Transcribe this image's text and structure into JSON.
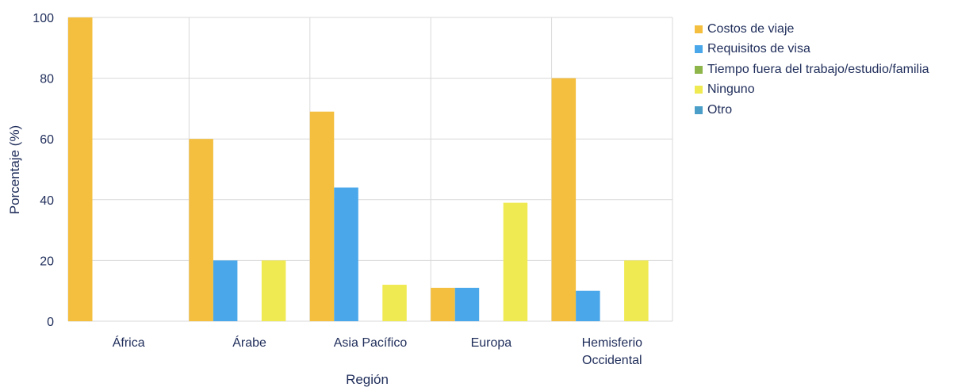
{
  "chart_data": {
    "type": "bar",
    "title": "",
    "xlabel": "Región",
    "ylabel": "Porcentaje (%)",
    "ylim": [
      0,
      100
    ],
    "yticks": [
      0,
      20,
      40,
      60,
      80,
      100
    ],
    "grid": true,
    "legend_position": "right",
    "categories": [
      [
        "África"
      ],
      [
        "Árabe"
      ],
      [
        "Asia Pacífico"
      ],
      [
        "Europa"
      ],
      [
        "Hemisferio",
        "Occidental"
      ]
    ],
    "series": [
      {
        "name": "Costos de viaje",
        "color": "#f4bf3e",
        "values": [
          100,
          60,
          69,
          11,
          80
        ]
      },
      {
        "name": "Requisitos de visa",
        "color": "#4aa8ea",
        "values": [
          0,
          20,
          44,
          11,
          10
        ]
      },
      {
        "name": "Tiempo fuera del trabajo/estudio/familia",
        "color": "#8db54a",
        "values": [
          0,
          0,
          0,
          0,
          0
        ]
      },
      {
        "name": "Ninguno",
        "color": "#f0ea52",
        "values": [
          0,
          20,
          12,
          39,
          20
        ]
      },
      {
        "name": "Otro",
        "color": "#4a9ec7",
        "values": [
          0,
          0,
          0,
          0,
          0
        ]
      }
    ]
  }
}
